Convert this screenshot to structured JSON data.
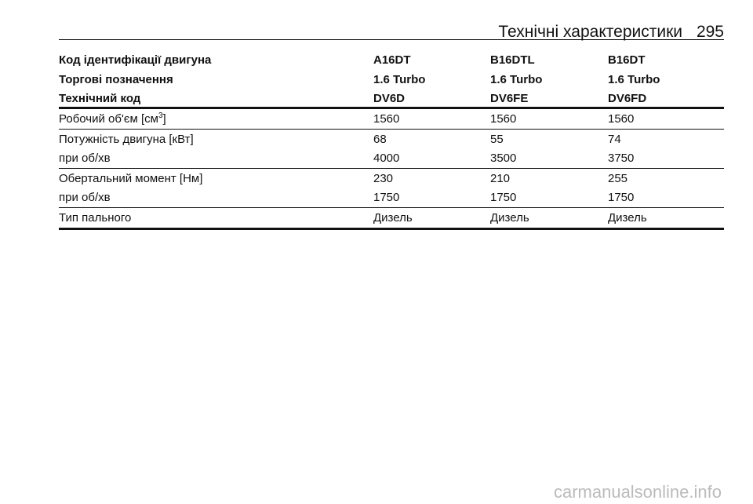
{
  "header": {
    "title": "Технічні характеристики",
    "page": "295"
  },
  "table": {
    "head": [
      [
        "Код ідентифікації двигуна",
        "A16DT",
        "B16DTL",
        "B16DT"
      ],
      [
        "Торгові позначення",
        "1.6 Turbo",
        "1.6 Turbo",
        "1.6 Turbo"
      ],
      [
        "Технічний код",
        "DV6D",
        "DV6FE",
        "DV6FD"
      ]
    ],
    "groups": [
      {
        "rows": [
          [
            {
              "text": "Робочий об'єм [см",
              "sup": "3",
              "after": "]"
            },
            "1560",
            "1560",
            "1560"
          ]
        ]
      },
      {
        "rows": [
          [
            "Потужність двигуна [кВт]",
            "68",
            "55",
            "74"
          ],
          [
            "при об/хв",
            "4000",
            "3500",
            "3750"
          ]
        ]
      },
      {
        "rows": [
          [
            "Обертальний момент [Нм]",
            "230",
            "210",
            "255"
          ],
          [
            "при об/хв",
            "1750",
            "1750",
            "1750"
          ]
        ]
      },
      {
        "rows": [
          [
            "Тип пального",
            "Дизель",
            "Дизель",
            "Дизель"
          ]
        ]
      }
    ]
  },
  "watermark": "carmanualsonline.info"
}
